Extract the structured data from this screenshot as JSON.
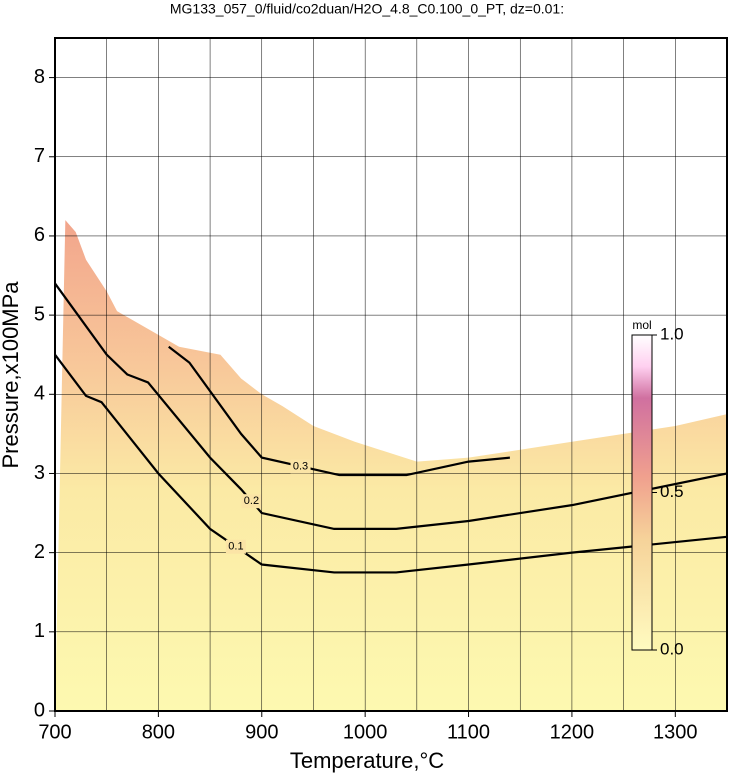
{
  "chart_data": {
    "type": "contour",
    "title": "MG133_057_0/fluid/co2duan/H2O_4.8_C0.100_0_PT, dz=0.01:",
    "x_label": "Temperature,°C",
    "y_label": "Pressure,x100MPa",
    "xlim": [
      700,
      1350
    ],
    "ylim": [
      0,
      8.5
    ],
    "xticks": [
      700,
      800,
      900,
      1000,
      1100,
      1200,
      1300
    ],
    "xgrid_minor": [
      750,
      850,
      950,
      1050,
      1150,
      1250
    ],
    "yticks": [
      0,
      1,
      2,
      3,
      4,
      5,
      6,
      7,
      8
    ],
    "grid": true,
    "fill_boundary": {
      "x": [
        710,
        720,
        730,
        750,
        760,
        800,
        820,
        860,
        870,
        880,
        900,
        920,
        950,
        990,
        1050,
        1100,
        1150,
        1200,
        1250,
        1300,
        1350
      ],
      "y": [
        6.2,
        6.05,
        5.7,
        5.3,
        5.05,
        4.75,
        4.6,
        4.5,
        4.35,
        4.2,
        4.0,
        3.85,
        3.6,
        3.4,
        3.15,
        3.2,
        3.3,
        3.4,
        3.5,
        3.6,
        3.75
      ]
    },
    "contours": [
      {
        "level": 0.1,
        "x": [
          700,
          730,
          745,
          800,
          850,
          900,
          970,
          1030,
          1100,
          1200,
          1350
        ],
        "y": [
          4.5,
          3.98,
          3.9,
          3.0,
          2.3,
          1.85,
          1.75,
          1.75,
          1.85,
          2.0,
          2.2
        ]
      },
      {
        "level": 0.2,
        "x": [
          700,
          750,
          770,
          790,
          850,
          880,
          900,
          970,
          1030,
          1100,
          1200,
          1350
        ],
        "y": [
          5.4,
          4.5,
          4.25,
          4.15,
          3.2,
          2.8,
          2.5,
          2.3,
          2.3,
          2.4,
          2.6,
          3.0
        ]
      },
      {
        "level": 0.3,
        "x": [
          810,
          830,
          880,
          900,
          975,
          1040,
          1100,
          1140
        ],
        "y": [
          4.6,
          4.4,
          3.5,
          3.2,
          2.98,
          2.98,
          3.15,
          3.2
        ]
      }
    ],
    "colorbar": {
      "label": "mol",
      "lim": [
        0,
        1
      ],
      "ticks": [
        {
          "value": 0,
          "label": "0.0"
        },
        {
          "value": 0.5,
          "label": "0.5"
        },
        {
          "value": 1,
          "label": "1.0"
        }
      ]
    }
  }
}
